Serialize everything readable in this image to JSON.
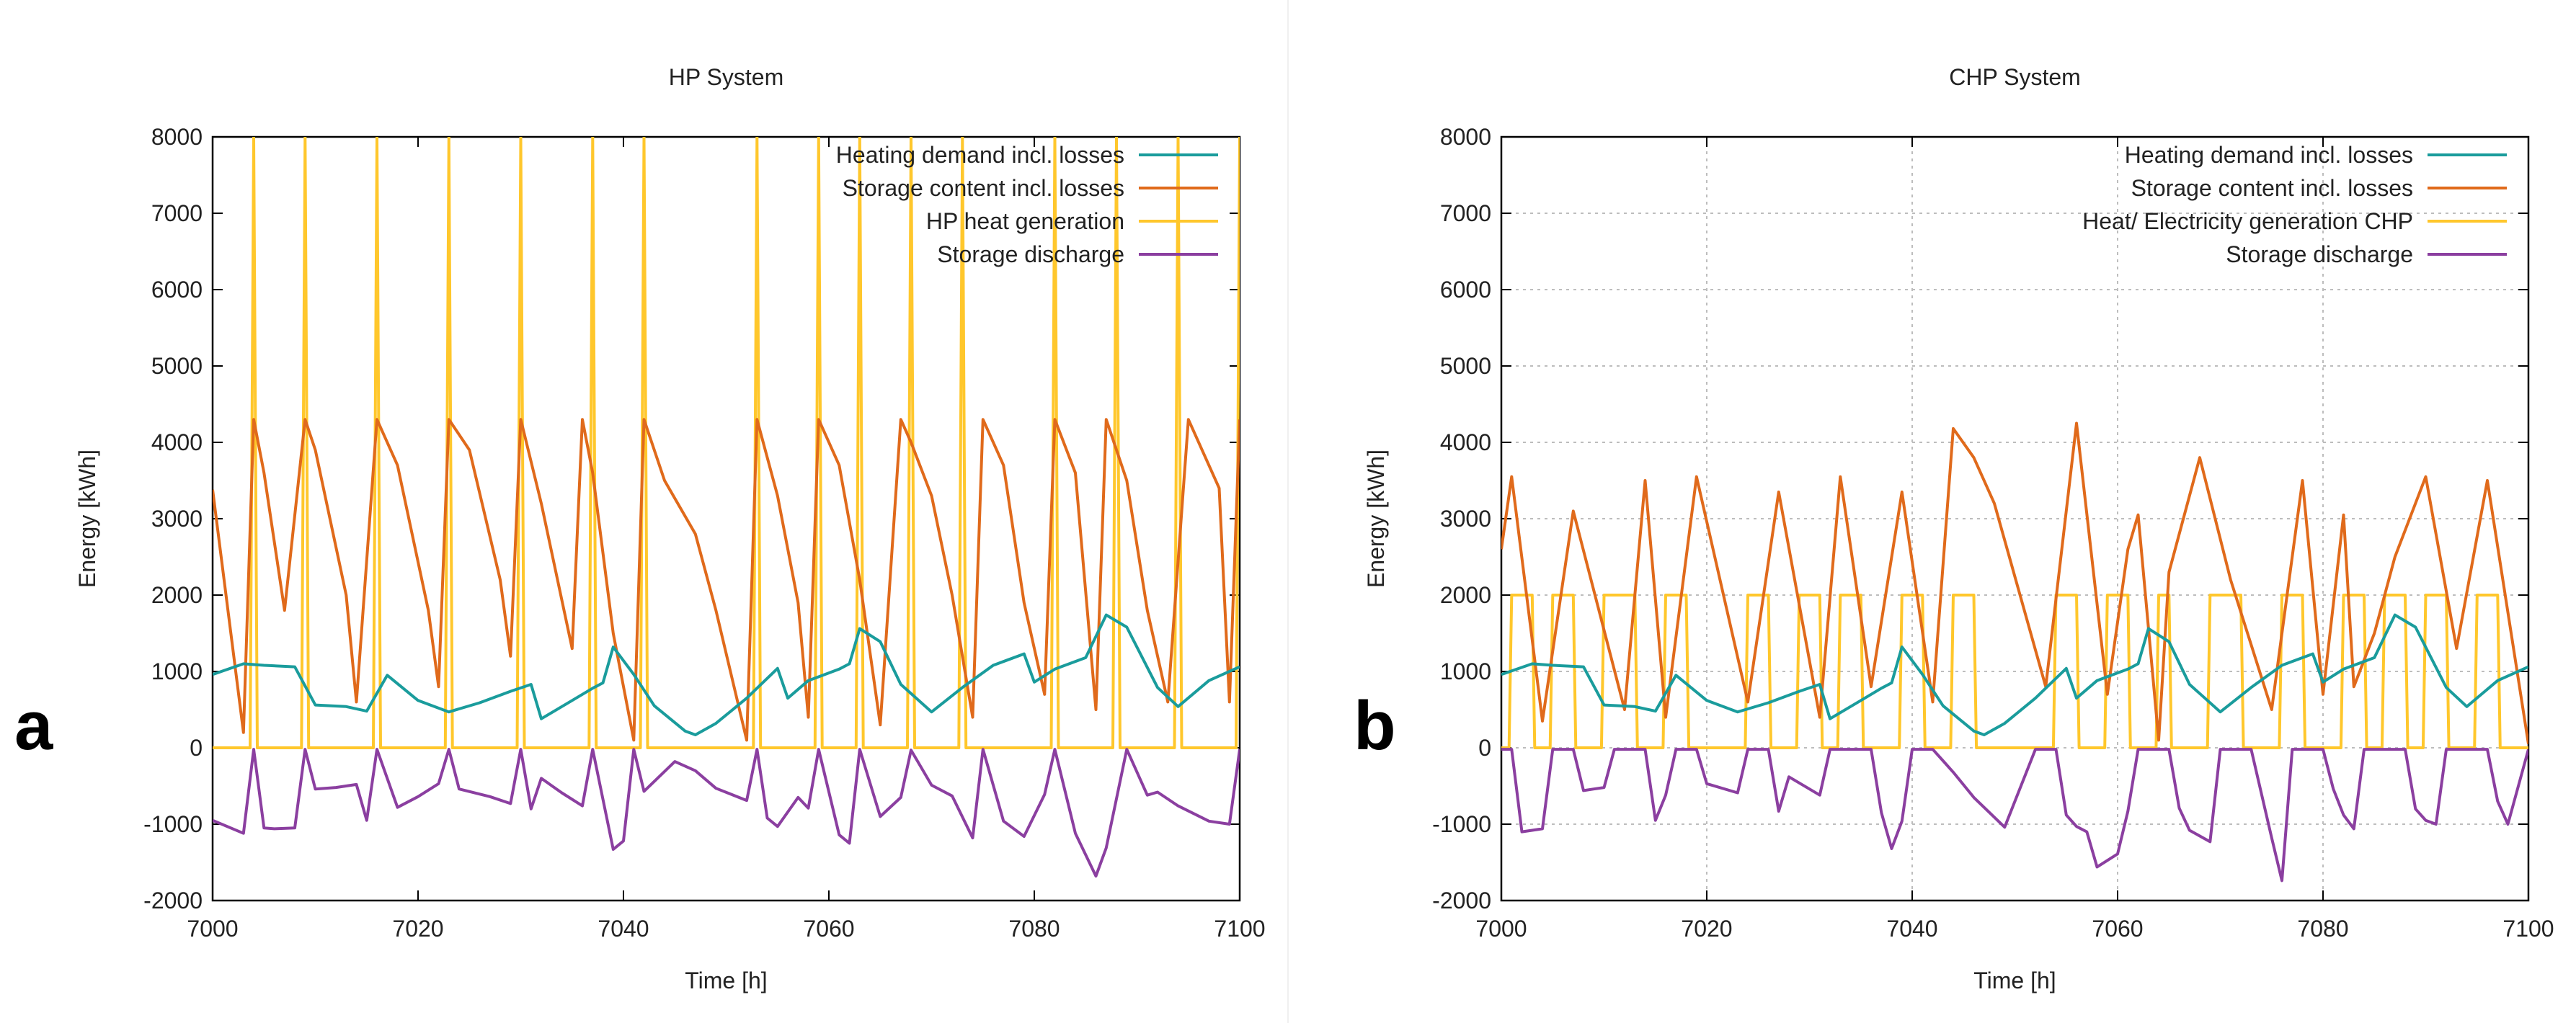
{
  "panels": [
    {
      "letter": "a",
      "chart_data": {
        "type": "line",
        "title": "HP System",
        "xlabel": "Time [h]",
        "ylabel": "Energy [kWh]",
        "xlim": [
          7000,
          7100
        ],
        "ylim": [
          -2000,
          8000
        ],
        "xticks": [
          7000,
          7020,
          7040,
          7060,
          7080,
          7100
        ],
        "yticks": [
          -2000,
          -1000,
          0,
          1000,
          2000,
          3000,
          4000,
          5000,
          6000,
          7000,
          8000
        ],
        "grid": false,
        "legend_position": "top-right",
        "series": [
          {
            "name": "Heating demand incl. losses",
            "color": "#1a9c9c",
            "x": [
              7000,
              7003,
              7005,
              7008,
              7010,
              7013,
              7015,
              7017,
              7020,
              7023,
              7026,
              7029,
              7031,
              7032,
              7035,
              7037,
              7038,
              7039,
              7041,
              7043,
              7046,
              7047,
              7049,
              7052,
              7055,
              7056,
              7058,
              7061,
              7062,
              7063,
              7065,
              7067,
              7070,
              7073,
              7076,
              7079,
              7080,
              7082,
              7085,
              7087,
              7089,
              7092,
              7094,
              7097,
              7100
            ],
            "y": [
              960,
              1100,
              1080,
              1060,
              560,
              540,
              480,
              950,
              620,
              470,
              590,
              740,
              830,
              380,
              620,
              780,
              850,
              1320,
              960,
              550,
              220,
              170,
              320,
              650,
              1040,
              650,
              880,
              1030,
              1100,
              1560,
              1390,
              830,
              470,
              790,
              1080,
              1230,
              860,
              1030,
              1180,
              1740,
              1580,
              790,
              540,
              880,
              1060
            ]
          },
          {
            "name": "Storage content incl. losses",
            "color": "#e06a1b",
            "x": [
              7000,
              7003,
              7004,
              7005,
              7007,
              7009,
              7010,
              7013,
              7014,
              7016,
              7018,
              7021,
              7022,
              7023,
              7025,
              7028,
              7029,
              7030,
              7032,
              7035,
              7036,
              7037,
              7039,
              7041,
              7042,
              7044,
              7047,
              7049,
              7052,
              7053,
              7055,
              7057,
              7058,
              7059,
              7061,
              7063,
              7065,
              7067,
              7068,
              7070,
              7072,
              7074,
              7075,
              7077,
              7079,
              7081,
              7082,
              7084,
              7086,
              7087,
              7089,
              7091,
              7093,
              7095,
              7098,
              7099,
              7100
            ],
            "y": [
              3380,
              200,
              4300,
              3600,
              1800,
              4300,
              3900,
              2000,
              600,
              4300,
              3700,
              1800,
              800,
              4300,
              3900,
              2200,
              1200,
              4300,
              3200,
              1300,
              4300,
              3600,
              1500,
              100,
              4300,
              3500,
              2800,
              1800,
              100,
              4300,
              3300,
              1900,
              400,
              4300,
              3700,
              2200,
              300,
              4300,
              4000,
              3300,
              2000,
              400,
              4300,
              3700,
              1900,
              700,
              4300,
              3600,
              500,
              4300,
              3500,
              1800,
              600,
              4300,
              3400,
              600,
              4300
            ]
          },
          {
            "name": "HP heat generation",
            "color": "#ffc72c",
            "pulses": [
              7004,
              7009,
              7016,
              7023,
              7030,
              7037,
              7042,
              7053,
              7059,
              7063,
              7068,
              7073,
              7082,
              7088,
              7094,
              7100
            ],
            "peak": 8000
          },
          {
            "name": "Storage discharge",
            "color": "#8b3fa0",
            "x": [
              7000,
              7003,
              7004,
              7005,
              7006,
              7008,
              7009,
              7010,
              7012,
              7014,
              7015,
              7016,
              7018,
              7020,
              7022,
              7023,
              7024,
              7027,
              7029,
              7030,
              7031,
              7032,
              7034,
              7036,
              7037,
              7039,
              7040,
              7041,
              7042,
              7045,
              7047,
              7049,
              7052,
              7053,
              7054,
              7055,
              7057,
              7058,
              7059,
              7061,
              7062,
              7063,
              7065,
              7067,
              7068,
              7070,
              7072,
              7074,
              7075,
              7077,
              7079,
              7081,
              7082,
              7084,
              7086,
              7087,
              7089,
              7091,
              7092,
              7094,
              7097,
              7099,
              7100
            ],
            "y": [
              -950,
              -1120,
              -20,
              -1050,
              -1060,
              -1050,
              -20,
              -540,
              -520,
              -480,
              -950,
              -20,
              -780,
              -640,
              -470,
              -20,
              -540,
              -640,
              -730,
              -20,
              -800,
              -400,
              -590,
              -760,
              -20,
              -1330,
              -1220,
              -20,
              -570,
              -180,
              -300,
              -530,
              -690,
              -20,
              -920,
              -1030,
              -650,
              -790,
              -20,
              -1140,
              -1250,
              -20,
              -900,
              -650,
              -30,
              -490,
              -630,
              -1180,
              -20,
              -960,
              -1160,
              -610,
              -20,
              -1120,
              -1680,
              -1310,
              -20,
              -620,
              -580,
              -760,
              -960,
              -1000,
              -20
            ]
          }
        ]
      }
    },
    {
      "letter": "b",
      "chart_data": {
        "type": "line",
        "title": "CHP System",
        "xlabel": "Time [h]",
        "ylabel": "Energy [kWh]",
        "xlim": [
          7000,
          7100
        ],
        "ylim": [
          -2000,
          8000
        ],
        "xticks": [
          7000,
          7020,
          7040,
          7060,
          7080,
          7100
        ],
        "yticks": [
          -2000,
          -1000,
          0,
          1000,
          2000,
          3000,
          4000,
          5000,
          6000,
          7000,
          8000
        ],
        "grid": true,
        "legend_position": "top-right",
        "series": [
          {
            "name": "Heating demand incl. losses",
            "color": "#1a9c9c",
            "x": [
              7000,
              7003,
              7005,
              7008,
              7010,
              7013,
              7015,
              7017,
              7020,
              7023,
              7026,
              7029,
              7031,
              7032,
              7035,
              7037,
              7038,
              7039,
              7041,
              7043,
              7046,
              7047,
              7049,
              7052,
              7055,
              7056,
              7058,
              7061,
              7062,
              7063,
              7065,
              7067,
              7070,
              7073,
              7076,
              7079,
              7080,
              7082,
              7085,
              7087,
              7089,
              7092,
              7094,
              7097,
              7100
            ],
            "y": [
              960,
              1100,
              1080,
              1060,
              560,
              540,
              480,
              950,
              620,
              470,
              590,
              740,
              830,
              380,
              620,
              780,
              850,
              1320,
              960,
              550,
              220,
              170,
              320,
              650,
              1040,
              650,
              880,
              1030,
              1100,
              1560,
              1390,
              830,
              470,
              790,
              1080,
              1230,
              860,
              1030,
              1180,
              1740,
              1580,
              790,
              540,
              880,
              1060
            ]
          },
          {
            "name": "Storage content incl. losses",
            "color": "#e06a1b",
            "x": [
              7000,
              7001,
              7004,
              7007,
              7012,
              7014,
              7016,
              7019,
              7024,
              7027,
              7031,
              7033,
              7036,
              7039,
              7042,
              7044,
              7046,
              7048,
              7053,
              7056,
              7059,
              7061,
              7062,
              7064,
              7065,
              7068,
              7071,
              7075,
              7078,
              7080,
              7082,
              7083,
              7085,
              7087,
              7090,
              7093,
              7096,
              7100
            ],
            "y": [
              2600,
              3550,
              350,
              3100,
              500,
              3500,
              400,
              3550,
              600,
              3350,
              400,
              3550,
              800,
              3350,
              600,
              4180,
              3800,
              3200,
              800,
              4250,
              700,
              2600,
              3050,
              100,
              2300,
              3800,
              2200,
              500,
              3500,
              700,
              3050,
              800,
              1500,
              2500,
              3550,
              1300,
              3500,
              50
            ]
          },
          {
            "name": "Heat/ Electricity generation CHP",
            "color": "#ffc72c",
            "blocks": [
              [
                7001,
                7003
              ],
              [
                7005,
                7007
              ],
              [
                7010,
                7013
              ],
              [
                7016,
                7018
              ],
              [
                7024,
                7026
              ],
              [
                7029,
                7031
              ],
              [
                7033,
                7035
              ],
              [
                7039,
                7041
              ],
              [
                7044,
                7046
              ],
              [
                7054,
                7056
              ],
              [
                7059,
                7061
              ],
              [
                7064,
                7065
              ],
              [
                7069,
                7072
              ],
              [
                7076,
                7078
              ],
              [
                7082,
                7084
              ],
              [
                7086,
                7088
              ],
              [
                7090,
                7092
              ],
              [
                7095,
                7097
              ]
            ],
            "peak": 2000
          },
          {
            "name": "Storage discharge",
            "color": "#8b3fa0",
            "x": [
              7000,
              7001,
              7002,
              7003,
              7004,
              7005,
              7006,
              7007,
              7008,
              7009,
              7010,
              7011,
              7012,
              7013,
              7014,
              7015,
              7016,
              7017,
              7019,
              7020,
              7023,
              7024,
              7025,
              7026,
              7027,
              7028,
              7031,
              7032,
              7033,
              7034,
              7036,
              7037,
              7038,
              7039,
              7040,
              7041,
              7042,
              7043,
              7044,
              7046,
              7049,
              7052,
              7053,
              7054,
              7055,
              7056,
              7057,
              7058,
              7060,
              7061,
              7062,
              7063,
              7064,
              7065,
              7066,
              7067,
              7069,
              7070,
              7072,
              7073,
              7075,
              7076,
              7077,
              7078,
              7079,
              7080,
              7081,
              7082,
              7083,
              7084,
              7085,
              7086,
              7087,
              7088,
              7089,
              7090,
              7091,
              7092,
              7094,
              7095,
              7096,
              7097,
              7098,
              7100
            ],
            "y": [
              -20,
              -20,
              -1100,
              -1080,
              -1060,
              -20,
              -20,
              -20,
              -560,
              -540,
              -520,
              -20,
              -20,
              -20,
              -20,
              -950,
              -620,
              -20,
              -20,
              -470,
              -590,
              -20,
              -20,
              -20,
              -830,
              -380,
              -620,
              -20,
              -20,
              -20,
              -20,
              -850,
              -1320,
              -960,
              -20,
              -20,
              -20,
              -170,
              -320,
              -650,
              -1040,
              -20,
              -20,
              -20,
              -880,
              -1030,
              -1100,
              -1560,
              -1390,
              -830,
              -20,
              -20,
              -20,
              -20,
              -790,
              -1080,
              -1230,
              -20,
              -20,
              -20,
              -1180,
              -1740,
              -20,
              -20,
              -20,
              -20,
              -540,
              -880,
              -1060,
              -20,
              -20,
              -20,
              -20,
              -20,
              -800,
              -950,
              -1000,
              -20,
              -20,
              -20,
              -20,
              -700,
              -1000,
              -20
            ]
          }
        ]
      }
    }
  ]
}
